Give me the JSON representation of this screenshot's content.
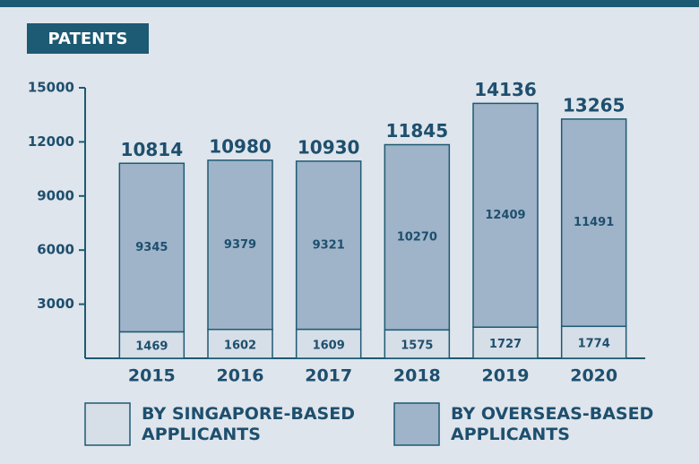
{
  "chart_data": {
    "type": "stacked_bar",
    "title": "PATENTS",
    "categories": [
      "2015",
      "2016",
      "2017",
      "2018",
      "2019",
      "2020"
    ],
    "series": [
      {
        "name": "BY SINGAPORE-BASED APPLICANTS",
        "color": "#d6dee7",
        "values": [
          1469,
          1602,
          1609,
          1575,
          1727,
          1774
        ]
      },
      {
        "name": "BY OVERSEAS-BASED APPLICANTS",
        "color": "#9fb4c9",
        "values": [
          9345,
          9379,
          9321,
          10270,
          12409,
          11491
        ]
      }
    ],
    "totals": [
      10814,
      10980,
      10930,
      11845,
      14136,
      13265
    ],
    "ylim": [
      0,
      15000
    ],
    "yticks": [
      3000,
      6000,
      9000,
      12000,
      15000
    ],
    "grid": false
  }
}
